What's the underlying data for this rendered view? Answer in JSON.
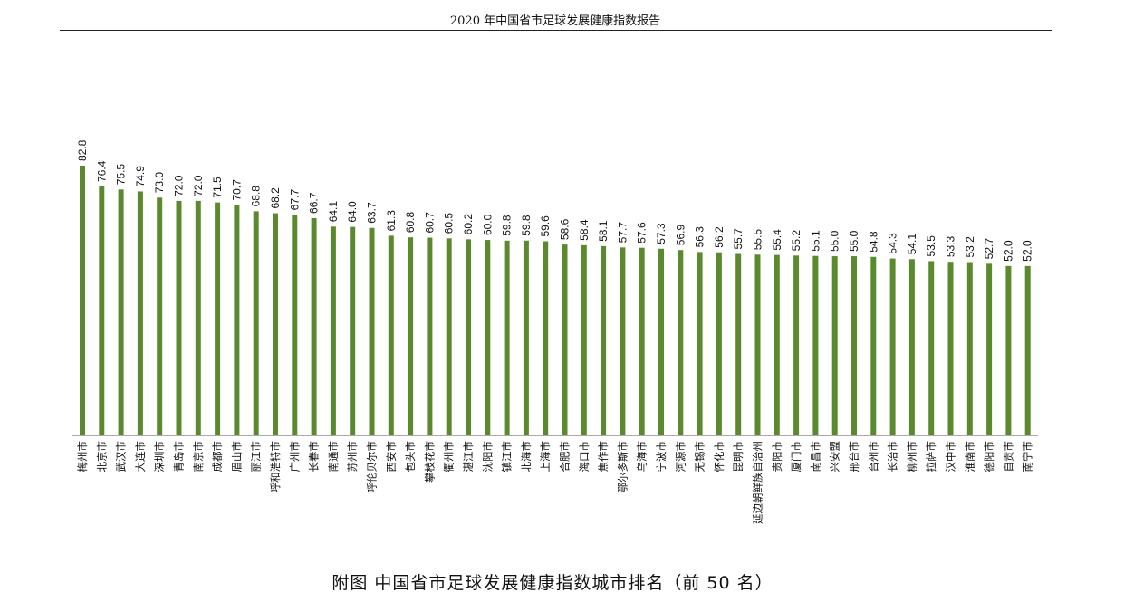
{
  "header": {
    "title": "2020 年中国省市足球发展健康指数报告"
  },
  "caption": "附图 中国省市足球发展健康指数城市排名（前 50 名）",
  "colors": {
    "bar": "#5b8a2e",
    "axis": "#555555"
  },
  "chart_data": {
    "type": "bar",
    "title": "",
    "xlabel": "",
    "ylabel": "",
    "ylim": [
      0,
      82.8
    ],
    "grid": false,
    "data_labels": true,
    "categories": [
      "梅州市",
      "北京市",
      "武汉市",
      "大连市",
      "深圳市",
      "青岛市",
      "南京市",
      "成都市",
      "眉山市",
      "丽江市",
      "呼和浩特市",
      "广州市",
      "长春市",
      "南通市",
      "苏州市",
      "呼伦贝尔市",
      "西安市",
      "包头市",
      "攀枝花市",
      "衢州市",
      "湛江市",
      "沈阳市",
      "镇江市",
      "北海市",
      "上海市",
      "合肥市",
      "海口市",
      "焦作市",
      "鄂尔多斯市",
      "乌海市",
      "宁波市",
      "河源市",
      "无锡市",
      "怀化市",
      "昆明市",
      "延边朝鲜族自治州",
      "贵阳市",
      "厦门市",
      "南昌市",
      "兴安盟",
      "邢台市",
      "台州市",
      "长治市",
      "柳州市",
      "拉萨市",
      "汉中市",
      "淮南市",
      "德阳市",
      "自贡市",
      "南宁市"
    ],
    "values": [
      82.8,
      76.4,
      75.5,
      74.9,
      73.0,
      72.0,
      72.0,
      71.5,
      70.7,
      68.8,
      68.2,
      67.7,
      66.7,
      64.1,
      64.0,
      63.7,
      61.3,
      60.8,
      60.7,
      60.5,
      60.2,
      60.0,
      59.8,
      59.8,
      59.6,
      58.6,
      58.4,
      58.1,
      57.7,
      57.6,
      57.3,
      56.9,
      56.3,
      56.2,
      55.7,
      55.5,
      55.4,
      55.2,
      55.1,
      55.0,
      55.0,
      54.8,
      54.3,
      54.1,
      53.5,
      53.3,
      53.2,
      52.7,
      52.0,
      52.0
    ],
    "value_labels": [
      "82.8",
      "76.4",
      "75.5",
      "74.9",
      "73.0",
      "72.0",
      "72.0",
      "71.5",
      "70.7",
      "68.8",
      "68.2",
      "67.7",
      "66.7",
      "64.1",
      "64.0",
      "63.7",
      "61.3",
      "60.8",
      "60.7",
      "60.5",
      "60.2",
      "60.0",
      "59.8",
      "59.8",
      "59.6",
      "58.6",
      "58.4",
      "58.1",
      "57.7",
      "57.6",
      "57.3",
      "56.9",
      "56.3",
      "56.2",
      "55.7",
      "55.5",
      "55.4",
      "55.2",
      "55.1",
      "55.0",
      "55.0",
      "54.8",
      "54.3",
      "54.1",
      "53.5",
      "53.3",
      "53.2",
      "52.7",
      "52.0",
      "52.0"
    ]
  }
}
